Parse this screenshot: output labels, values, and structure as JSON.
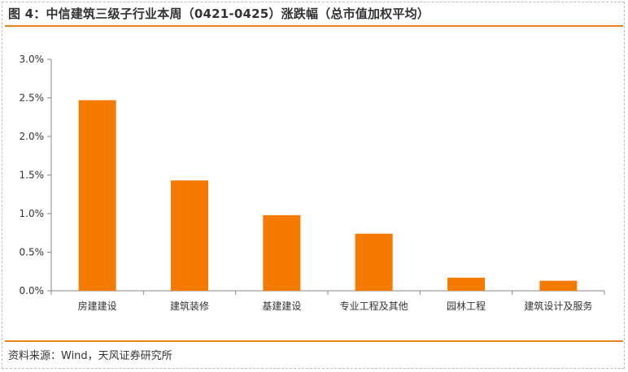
{
  "header": {
    "title": "图 4：中信建筑三级子行业本周（0421-0425）涨跌幅（总市值加权平均）"
  },
  "footer": {
    "source": "资料来源：Wind，天风证券研究所"
  },
  "colors": {
    "bar": "#f47b00",
    "accent_rule": "#e8801e",
    "axis": "#888888"
  },
  "chart_data": {
    "type": "bar",
    "title": "",
    "xlabel": "",
    "ylabel": "",
    "categories": [
      "房建建设",
      "建筑装修",
      "基建建设",
      "专业工程及其他",
      "园林工程",
      "建筑设计及服务"
    ],
    "values": [
      2.47,
      1.43,
      0.98,
      0.74,
      0.17,
      0.13
    ],
    "ylim": [
      0,
      3.0
    ],
    "yticks": [
      0,
      0.5,
      1.0,
      1.5,
      2.0,
      2.5,
      3.0
    ],
    "ytick_labels": [
      "0.0%",
      "0.5%",
      "1.0%",
      "1.5%",
      "2.0%",
      "2.5%",
      "3.0%"
    ],
    "grid": false,
    "legend": "none"
  }
}
